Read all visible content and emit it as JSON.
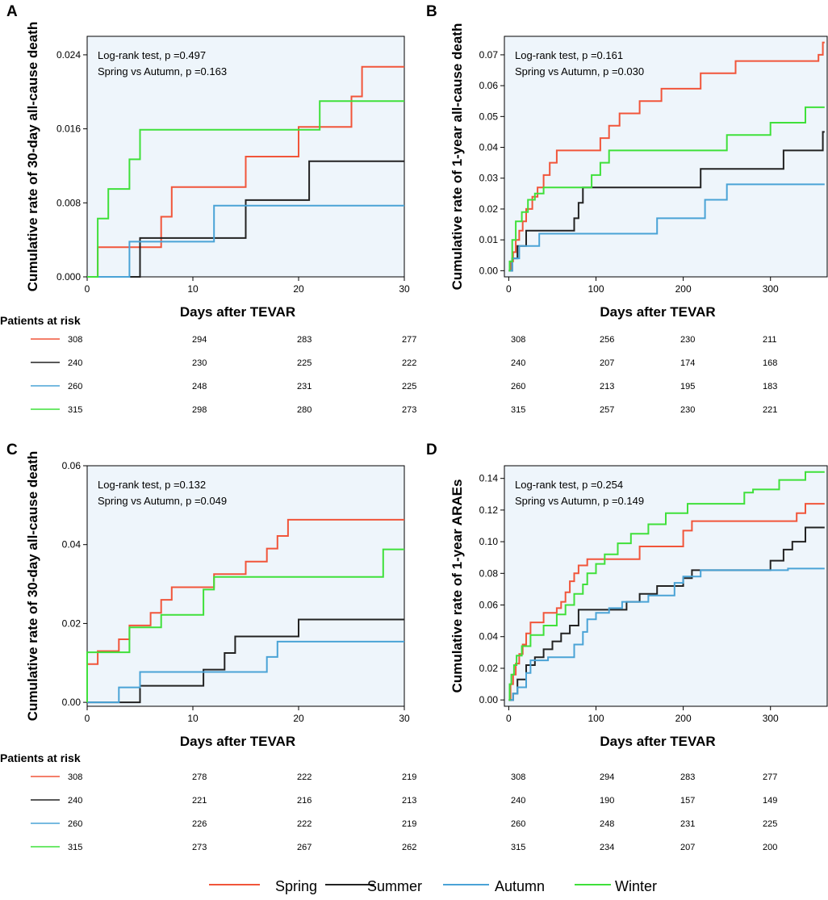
{
  "chart_data": [
    {
      "panel": "A",
      "type": "line",
      "step": true,
      "xlabel": "Days after TEVAR",
      "ylabel": "Cumulative rate of 30-day all-cause death",
      "xlim": [
        0,
        30
      ],
      "ylim": [
        0,
        0.026
      ],
      "xticks": [
        0,
        10,
        20,
        30
      ],
      "yticks": [
        "0.000",
        "0.008",
        "0.016",
        "0.024"
      ],
      "annotation": [
        "Log-rank test, p =0.497",
        "Spring vs Autumn, p =0.163"
      ],
      "series": [
        {
          "name": "Spring",
          "x": [
            1,
            7,
            8,
            15,
            20,
            25,
            26,
            30
          ],
          "y": [
            0.0032,
            0.0065,
            0.0097,
            0.013,
            0.0162,
            0.0195,
            0.0227,
            0.0227
          ]
        },
        {
          "name": "Summer",
          "x": [
            0,
            5,
            15,
            21,
            30
          ],
          "y": [
            0,
            0.0042,
            0.0083,
            0.0125,
            0.0125
          ]
        },
        {
          "name": "Autumn",
          "x": [
            4,
            12,
            30
          ],
          "y": [
            0.0038,
            0.0077,
            0.0077
          ]
        },
        {
          "name": "Winter",
          "x": [
            1,
            2,
            4,
            5,
            22,
            30
          ],
          "y": [
            0.0063,
            0.0095,
            0.0127,
            0.0159,
            0.019,
            0.019
          ]
        }
      ],
      "risk_table": {
        "title": "Patients at risk",
        "rows": [
          [
            "308",
            "294",
            "283",
            "277"
          ],
          [
            "240",
            "230",
            "225",
            "222"
          ],
          [
            "260",
            "248",
            "231",
            "225"
          ],
          [
            "315",
            "298",
            "280",
            "273"
          ]
        ]
      }
    },
    {
      "panel": "B",
      "type": "line",
      "step": true,
      "xlabel": "Days after TEVAR",
      "ylabel": "Cumulative rate of 1-year all-cause death",
      "xlim": [
        -5,
        365
      ],
      "ylim": [
        -0.002,
        0.076
      ],
      "xticks": [
        0,
        100,
        200,
        300
      ],
      "yticks": [
        "0.00",
        "0.01",
        "0.02",
        "0.03",
        "0.04",
        "0.05",
        "0.06",
        "0.07"
      ],
      "annotation": [
        "Log-rank test, p =0.161",
        "Spring vs Autumn, p =0.030"
      ],
      "series": [
        {
          "name": "Spring",
          "x": [
            2,
            5,
            8,
            12,
            16,
            20,
            27,
            33,
            40,
            47,
            55,
            75,
            105,
            115,
            127,
            150,
            175,
            220,
            260,
            355,
            360,
            362
          ],
          "y": [
            0.003,
            0.006,
            0.01,
            0.013,
            0.016,
            0.02,
            0.024,
            0.027,
            0.031,
            0.035,
            0.039,
            0.039,
            0.043,
            0.047,
            0.051,
            0.055,
            0.059,
            0.064,
            0.068,
            0.07,
            0.074,
            0.074
          ]
        },
        {
          "name": "Summer",
          "x": [
            4,
            10,
            20,
            45,
            75,
            80,
            85,
            100,
            220,
            315,
            360,
            362
          ],
          "y": [
            0.004,
            0.008,
            0.013,
            0.013,
            0.017,
            0.022,
            0.027,
            0.027,
            0.033,
            0.039,
            0.045,
            0.045
          ]
        },
        {
          "name": "Autumn",
          "x": [
            4,
            12,
            35,
            170,
            225,
            250,
            362
          ],
          "y": [
            0.004,
            0.008,
            0.012,
            0.017,
            0.023,
            0.028,
            0.028
          ]
        },
        {
          "name": "Winter",
          "x": [
            1,
            4,
            8,
            15,
            22,
            30,
            40,
            50,
            95,
            105,
            115,
            130,
            250,
            300,
            340,
            362
          ],
          "y": [
            0.003,
            0.01,
            0.016,
            0.019,
            0.023,
            0.025,
            0.027,
            0.027,
            0.031,
            0.035,
            0.039,
            0.039,
            0.044,
            0.048,
            0.053,
            0.053
          ]
        }
      ],
      "risk_table": {
        "rows": [
          [
            "308",
            "256",
            "230",
            "211"
          ],
          [
            "240",
            "207",
            "174",
            "168"
          ],
          [
            "260",
            "213",
            "195",
            "183"
          ],
          [
            "315",
            "257",
            "230",
            "221"
          ]
        ]
      }
    },
    {
      "panel": "C",
      "type": "line",
      "step": true,
      "xlabel": "Days after TEVAR",
      "ylabel": "Cumulative rate of 30-day all-cause death",
      "xlim": [
        0,
        30
      ],
      "ylim": [
        -0.001,
        0.06
      ],
      "xticks": [
        0,
        10,
        20,
        30
      ],
      "yticks": [
        "0.00",
        "0.02",
        "0.04",
        "0.06"
      ],
      "annotation": [
        "Log-rank test, p =0.132",
        "Spring vs Autumn, p =0.049"
      ],
      "series": [
        {
          "name": "Spring",
          "x": [
            0,
            1,
            3,
            4,
            6,
            7,
            8,
            12,
            15,
            17,
            18,
            19,
            30
          ],
          "y": [
            0.0097,
            0.013,
            0.016,
            0.0195,
            0.0227,
            0.026,
            0.0292,
            0.0325,
            0.0357,
            0.039,
            0.0422,
            0.0463,
            0.0463
          ]
        },
        {
          "name": "Summer",
          "x": [
            0,
            5,
            11,
            13,
            14,
            20,
            30
          ],
          "y": [
            0,
            0.0042,
            0.0083,
            0.0125,
            0.0167,
            0.021,
            0.021
          ]
        },
        {
          "name": "Autumn",
          "x": [
            3,
            5,
            14,
            17,
            18,
            30
          ],
          "y": [
            0.0038,
            0.0077,
            0.0077,
            0.0115,
            0.0154,
            0.0154
          ]
        },
        {
          "name": "Winter",
          "x": [
            0,
            4,
            7,
            11,
            12,
            28,
            30
          ],
          "y": [
            0.0127,
            0.019,
            0.0222,
            0.0286,
            0.0318,
            0.0388,
            0.0388
          ]
        }
      ],
      "risk_table": {
        "title": "Patients at risk",
        "rows": [
          [
            "308",
            "278",
            "222",
            "219"
          ],
          [
            "240",
            "221",
            "216",
            "213"
          ],
          [
            "260",
            "226",
            "222",
            "219"
          ],
          [
            "315",
            "273",
            "267",
            "262"
          ]
        ]
      }
    },
    {
      "panel": "D",
      "type": "line",
      "step": true,
      "xlabel": "Days after TEVAR",
      "ylabel": "Cumulative rate of 1-year ARAEs",
      "xlim": [
        -5,
        365
      ],
      "ylim": [
        -0.004,
        0.148
      ],
      "xticks": [
        0,
        100,
        200,
        300
      ],
      "yticks": [
        "0.00",
        "0.02",
        "0.04",
        "0.06",
        "0.08",
        "0.10",
        "0.12",
        "0.14"
      ],
      "annotation": [
        "Log-rank test, p =0.254",
        "Spring vs Autumn, p =0.149"
      ],
      "series": [
        {
          "name": "Spring",
          "x": [
            2,
            5,
            8,
            12,
            16,
            20,
            25,
            30,
            40,
            55,
            60,
            65,
            70,
            75,
            80,
            90,
            110,
            150,
            200,
            210,
            330,
            340,
            362
          ],
          "y": [
            0.01,
            0.016,
            0.023,
            0.029,
            0.035,
            0.042,
            0.049,
            0.049,
            0.055,
            0.058,
            0.062,
            0.068,
            0.075,
            0.08,
            0.085,
            0.089,
            0.089,
            0.097,
            0.107,
            0.113,
            0.118,
            0.124,
            0.124
          ]
        },
        {
          "name": "Summer",
          "x": [
            5,
            10,
            20,
            30,
            40,
            50,
            60,
            70,
            80,
            95,
            110,
            135,
            150,
            170,
            200,
            210,
            290,
            300,
            315,
            325,
            340,
            362
          ],
          "y": [
            0.004,
            0.013,
            0.022,
            0.027,
            0.032,
            0.037,
            0.042,
            0.047,
            0.057,
            0.057,
            0.057,
            0.062,
            0.067,
            0.072,
            0.077,
            0.082,
            0.082,
            0.088,
            0.095,
            0.1,
            0.109,
            0.109
          ]
        },
        {
          "name": "Autumn",
          "x": [
            5,
            10,
            20,
            25,
            45,
            75,
            85,
            90,
            100,
            115,
            130,
            160,
            190,
            200,
            220,
            320,
            362
          ],
          "y": [
            0.004,
            0.008,
            0.017,
            0.025,
            0.027,
            0.035,
            0.043,
            0.051,
            0.055,
            0.058,
            0.062,
            0.066,
            0.074,
            0.078,
            0.082,
            0.083,
            0.083
          ]
        },
        {
          "name": "Winter",
          "x": [
            1,
            3,
            6,
            9,
            15,
            25,
            40,
            55,
            65,
            75,
            85,
            90,
            100,
            110,
            125,
            140,
            160,
            180,
            205,
            270,
            280,
            310,
            340,
            362
          ],
          "y": [
            0.01,
            0.016,
            0.022,
            0.028,
            0.034,
            0.041,
            0.047,
            0.054,
            0.06,
            0.067,
            0.073,
            0.08,
            0.086,
            0.092,
            0.099,
            0.105,
            0.111,
            0.118,
            0.124,
            0.131,
            0.133,
            0.139,
            0.144,
            0.144
          ]
        }
      ],
      "risk_table": {
        "rows": [
          [
            "308",
            "294",
            "283",
            "277"
          ],
          [
            "240",
            "190",
            "157",
            "149"
          ],
          [
            "260",
            "248",
            "231",
            "225"
          ],
          [
            "315",
            "234",
            "207",
            "200"
          ]
        ]
      }
    }
  ],
  "legend": [
    {
      "name": "Spring",
      "color": "#f1553a"
    },
    {
      "name": "Summer",
      "color": "#222222"
    },
    {
      "name": "Autumn",
      "color": "#4aa3d6"
    },
    {
      "name": "Winter",
      "color": "#3fe03a"
    }
  ]
}
